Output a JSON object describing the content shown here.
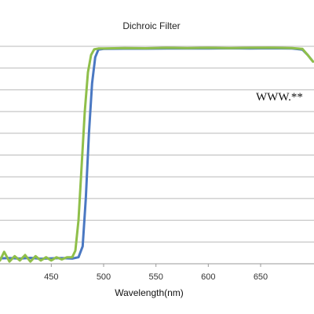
{
  "chart_data": {
    "type": "line",
    "title": "Dichroic Filter",
    "xlabel": "Wavelength(nm)",
    "ylabel": "",
    "xlim": [
      401,
      701
    ],
    "ylim": [
      0,
      100
    ],
    "x_ticks": [
      450,
      500,
      550,
      600,
      650
    ],
    "y_gridlines": [
      0,
      10,
      20,
      30,
      40,
      50,
      60,
      70,
      80,
      90,
      100
    ],
    "grid": true,
    "legend": "none",
    "annotation": "WWW.**",
    "series": [
      {
        "color": "#4a78c2",
        "x": [
          401,
          410,
          420,
          430,
          440,
          450,
          460,
          470,
          476,
          480,
          483,
          486,
          489,
          492,
          495,
          500,
          520,
          540,
          560,
          580,
          600,
          620,
          640,
          660,
          680,
          690,
          695,
          700
        ],
        "y": [
          2.5,
          2.6,
          2.4,
          2.7,
          2.3,
          2.5,
          2.6,
          2.4,
          3.0,
          8.0,
          30,
          60,
          83,
          95,
          98.5,
          98.8,
          98.9,
          98.9,
          99.0,
          99.0,
          99.0,
          99.1,
          99.0,
          99.1,
          99.0,
          98.5,
          96,
          93
        ]
      },
      {
        "color": "#8fbf4a",
        "x": [
          401,
          405,
          410,
          415,
          420,
          425,
          430,
          435,
          440,
          445,
          450,
          455,
          460,
          465,
          470,
          473,
          476,
          479,
          482,
          485,
          488,
          491,
          495,
          500,
          520,
          540,
          560,
          580,
          600,
          620,
          640,
          660,
          680,
          690,
          695,
          700
        ],
        "y": [
          1.5,
          5.5,
          1.0,
          3.5,
          1.5,
          4.0,
          1.0,
          3.5,
          1.5,
          3.0,
          1.5,
          3.0,
          2.0,
          3.0,
          3.0,
          6.0,
          20,
          45,
          70,
          88,
          96,
          98.6,
          99.0,
          99.0,
          99.2,
          99.1,
          99.3,
          99.2,
          99.3,
          99.2,
          99.3,
          99.4,
          99.2,
          98.8,
          96,
          93
        ]
      }
    ]
  }
}
